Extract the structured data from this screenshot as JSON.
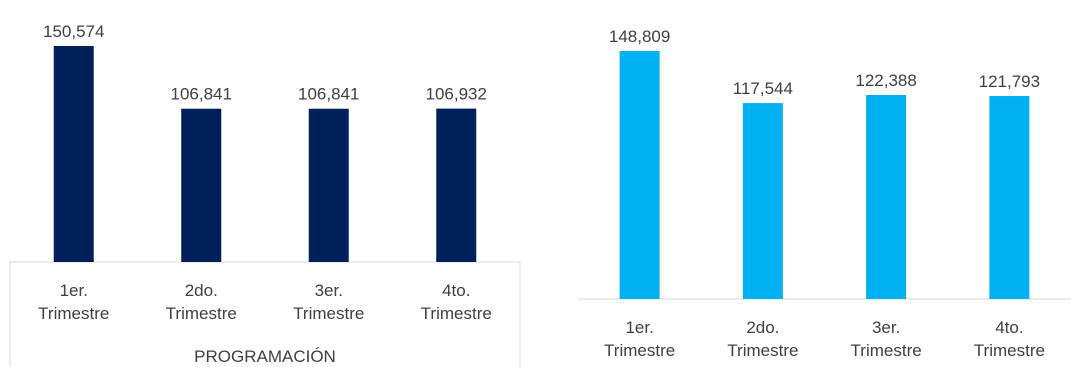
{
  "chart_data": [
    {
      "type": "bar",
      "title": "",
      "xlabel": "PROGRAMACIÓN",
      "ylabel": "",
      "categories": [
        [
          "1er.",
          "Trimestre"
        ],
        [
          "2do.",
          "Trimestre"
        ],
        [
          "3er.",
          "Trimestre"
        ],
        [
          "4to.",
          "Trimestre"
        ]
      ],
      "values": [
        150574,
        106841,
        106841,
        106932
      ],
      "value_labels": [
        "150,574",
        "106,841",
        "106,841",
        "106,932"
      ],
      "ylim": [
        0,
        160000
      ],
      "grid": false,
      "color": "#00205B"
    },
    {
      "type": "bar",
      "title": "",
      "xlabel": "",
      "ylabel": "",
      "categories": [
        [
          "1er.",
          "Trimestre"
        ],
        [
          "2do.",
          "Trimestre"
        ],
        [
          "3er.",
          "Trimestre"
        ],
        [
          "4to.",
          "Trimestre"
        ]
      ],
      "values": [
        148809,
        117544,
        122388,
        121793
      ],
      "value_labels": [
        "148,809",
        "117,544",
        "122,388",
        "121,793"
      ],
      "ylim": [
        0,
        160000
      ],
      "grid": false,
      "color": "#00B0F0"
    }
  ]
}
